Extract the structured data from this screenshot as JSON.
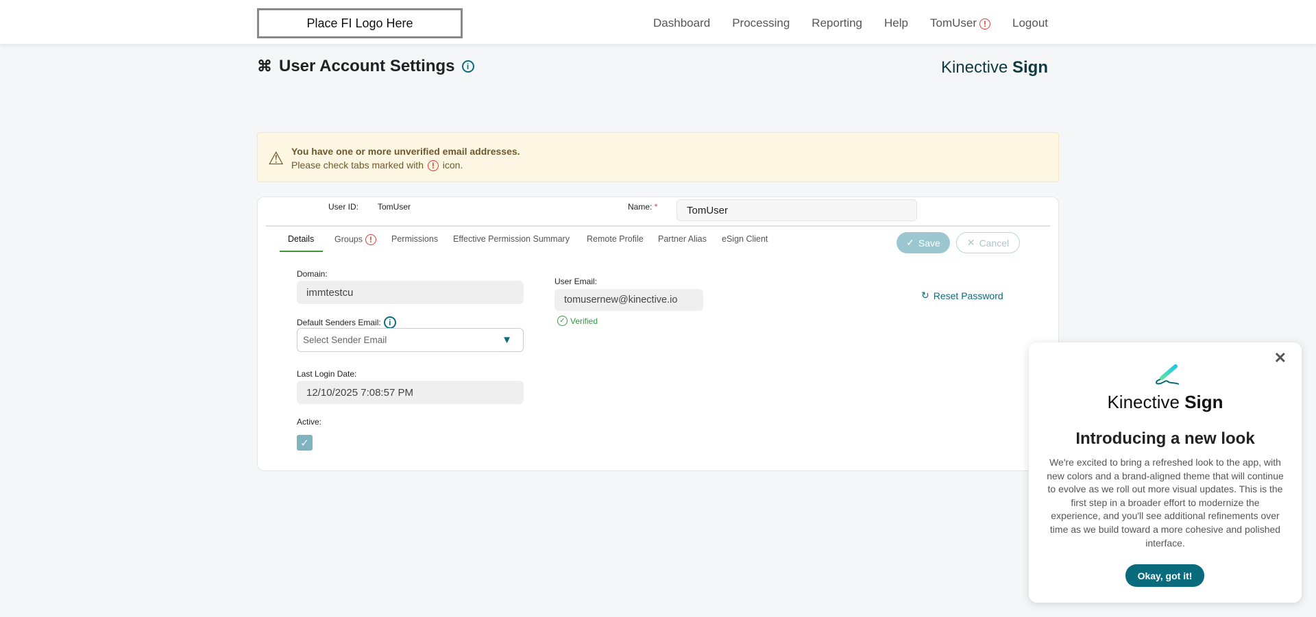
{
  "header": {
    "logo_text": "Place FI Logo Here",
    "nav": [
      {
        "label": "Dashboard"
      },
      {
        "label": "Processing"
      },
      {
        "label": "Reporting"
      },
      {
        "label": "Help"
      },
      {
        "label": "TomUser",
        "alert": "!"
      },
      {
        "label": "Logout"
      }
    ]
  },
  "page": {
    "title": "User Account Settings",
    "info": "i",
    "brand_light": "Kinective",
    "brand_bold": "Sign"
  },
  "alert": {
    "title": "You have one or more unverified email addresses.",
    "body_pre": "Please check tabs marked with",
    "body_post": "icon.",
    "icon": "!"
  },
  "user": {
    "id_label": "User ID:",
    "id_value": "TomUser",
    "name_label": "Name:",
    "required": "*",
    "name_value": "TomUser"
  },
  "tabs": [
    {
      "label": "Details",
      "active": true
    },
    {
      "label": "Groups",
      "alert": "!"
    },
    {
      "label": "Permissions"
    },
    {
      "label": "Effective Permission Summary"
    },
    {
      "label": "Remote Profile"
    },
    {
      "label": "Partner Alias"
    },
    {
      "label": "eSign Client"
    }
  ],
  "actions": {
    "save": "Save",
    "cancel": "Cancel"
  },
  "details": {
    "domain_label": "Domain:",
    "domain_value": "immtestcu",
    "senders_label": "Default Senders Email:",
    "senders_placeholder": "Select Sender Email",
    "last_login_label": "Last Login Date:",
    "last_login_value": "12/10/2025 7:08:57 PM",
    "active_label": "Active:",
    "active_checked": true,
    "email_label": "User Email:",
    "email_value": "tomusernew@kinective.io",
    "verified": "Verified",
    "reset_password": "Reset Password"
  },
  "modal": {
    "brand_light": "Kinective",
    "brand_bold": "Sign",
    "heading": "Introducing a new look",
    "body": "We're excited to bring a refreshed look to the app, with new colors and a brand-aligned theme that will continue to evolve as we roll out more visual updates. This is the first step in a broader effort to modernize the experience, and you'll see additional refinements over time as we build toward a more cohesive and polished interface.",
    "button": "Okay, got it!"
  },
  "colors": {
    "accent": "#0a6b7c",
    "alert_red": "#e53935",
    "verified_green": "#2e9e3e",
    "tab_underline": "#3a9a2e",
    "save_bg": "#9cc7d0"
  }
}
